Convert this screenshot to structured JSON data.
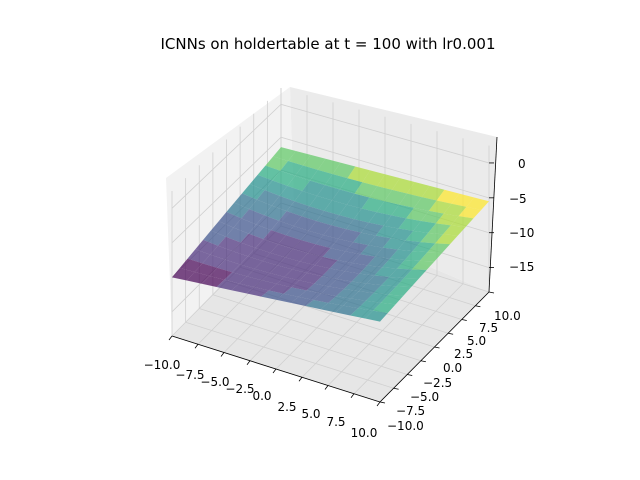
{
  "chart_data": {
    "type": "surface",
    "title": "ICNNs on holdertable at t = 100 with lr0.001",
    "colormap": "viridis",
    "x_range": [
      -10.0,
      10.0
    ],
    "y_range": [
      -10.0,
      10.0
    ],
    "z_range": [
      -18.5,
      2.5
    ],
    "x_ticks": [
      "−10.0",
      "−7.5",
      "−5.0",
      "−2.5",
      "0.0",
      "2.5",
      "5.0",
      "7.5",
      "10.0"
    ],
    "y_ticks": [
      "−10.0",
      "−7.5",
      "−5.0",
      "−2.5",
      "0.0",
      "2.5",
      "5.0",
      "7.5",
      "10.0"
    ],
    "z_ticks": [
      "−15",
      "−10",
      "−5",
      "0"
    ],
    "z_tick_values": [
      -15,
      -10,
      -5,
      0
    ],
    "surface_z_corners": {
      "x_min_y_min": -10.0,
      "x_max_y_min": -7.5,
      "x_min_y_max": -6.5,
      "x_max_y_max": -5.5
    },
    "surface_z_center": -9.0,
    "grid": true
  }
}
